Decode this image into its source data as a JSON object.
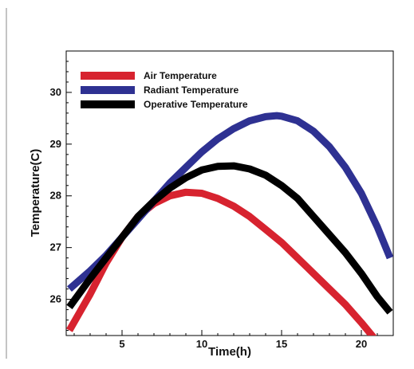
{
  "chart_data": {
    "type": "line",
    "title": "",
    "xlabel": "Time(h)",
    "ylabel": "Temperature(C)",
    "xlim": [
      1.5,
      22
    ],
    "ylim": [
      25.3,
      30.8
    ],
    "x_ticks": [
      5,
      10,
      15,
      20
    ],
    "y_ticks": [
      26,
      27,
      28,
      29,
      30
    ],
    "grid": false,
    "legend_position": "top-left",
    "series": [
      {
        "name": "Air Temperature",
        "color": "#d7232f",
        "x": [
          1.7,
          3,
          4,
          5,
          6,
          7,
          8,
          9,
          10,
          11,
          12,
          13,
          14,
          15,
          16,
          17,
          18,
          19,
          20,
          20.8
        ],
        "values": [
          25.4,
          26.1,
          26.7,
          27.2,
          27.6,
          27.85,
          28.0,
          28.07,
          28.05,
          27.95,
          27.8,
          27.6,
          27.35,
          27.1,
          26.8,
          26.5,
          26.2,
          25.9,
          25.55,
          25.25
        ]
      },
      {
        "name": "Radiant Temperature",
        "color": "#2e3192",
        "x": [
          1.7,
          3,
          4,
          5,
          6,
          7,
          8,
          9,
          10,
          11,
          12,
          13,
          14,
          14.7,
          15,
          16,
          17,
          18,
          19,
          20,
          21,
          21.8
        ],
        "values": [
          26.2,
          26.55,
          26.85,
          27.2,
          27.55,
          27.9,
          28.25,
          28.55,
          28.85,
          29.1,
          29.3,
          29.45,
          29.53,
          29.55,
          29.54,
          29.45,
          29.25,
          28.95,
          28.55,
          28.05,
          27.4,
          26.8
        ]
      },
      {
        "name": "Operative Temperature",
        "color": "#000000",
        "x": [
          1.7,
          3,
          4,
          5,
          6,
          7,
          8,
          9,
          10,
          11,
          12,
          13,
          14,
          15,
          16,
          17,
          18,
          19,
          20,
          21,
          21.8
        ],
        "values": [
          25.85,
          26.4,
          26.8,
          27.2,
          27.6,
          27.9,
          28.15,
          28.35,
          28.5,
          28.57,
          28.58,
          28.52,
          28.4,
          28.2,
          27.95,
          27.6,
          27.25,
          26.9,
          26.5,
          26.05,
          25.75
        ]
      }
    ]
  }
}
